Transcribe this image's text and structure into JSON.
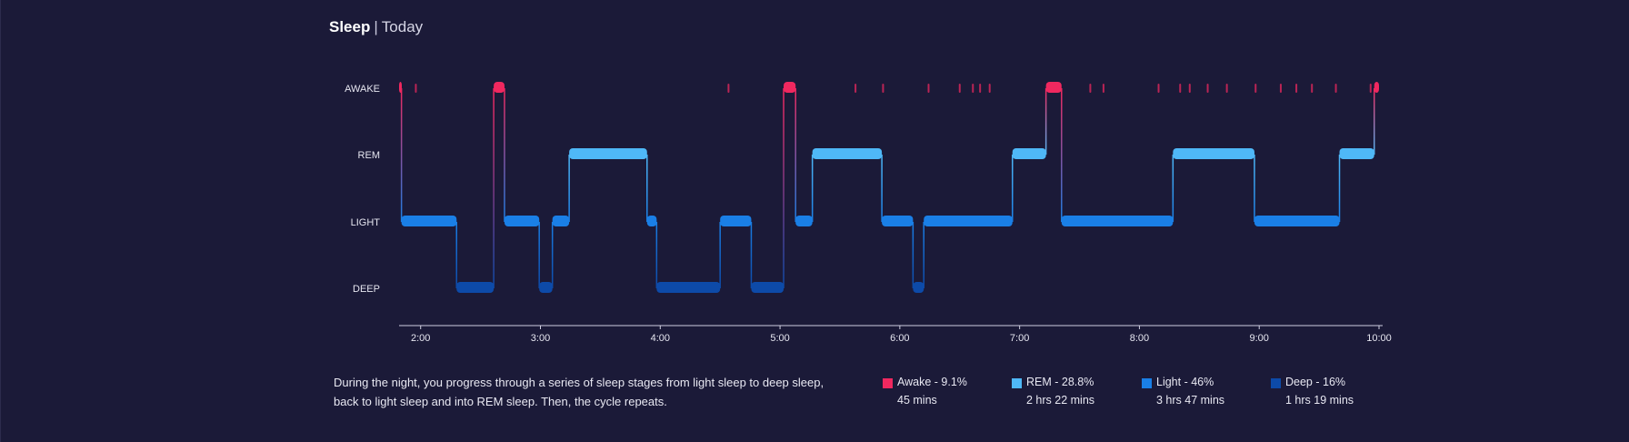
{
  "header": {
    "title": "Sleep",
    "separator": "|",
    "period": "Today"
  },
  "description": "During the night, you progress through a series of sleep stages from light sleep to deep sleep, back to light sleep and into REM sleep. Then, the cycle repeats.",
  "legend": [
    {
      "label": "Awake - 9.1%",
      "duration": "45 mins",
      "color": "#f0285f"
    },
    {
      "label": "REM - 28.8%",
      "duration": "2 hrs 22 mins",
      "color": "#4fb8f7"
    },
    {
      "label": "Light - 46%",
      "duration": "3 hrs 47 mins",
      "color": "#1a7fe6"
    },
    {
      "label": "Deep - 16%",
      "duration": "1 hrs 19 mins",
      "color": "#0d4aa8"
    }
  ],
  "chart_data": {
    "type": "line",
    "title": "",
    "stages": [
      "AWAKE",
      "REM",
      "LIGHT",
      "DEEP"
    ],
    "x_ticks": [
      "2:00",
      "3:00",
      "4:00",
      "5:00",
      "6:00",
      "7:00",
      "8:00",
      "9:00",
      "10:00"
    ],
    "x_range_hours": [
      1.82,
      10.0
    ],
    "stage_colors": {
      "AWAKE": "#f0285f",
      "REM": "#4fb8f7",
      "LIGHT": "#1a7fe6",
      "DEEP": "#0d4aa8"
    },
    "segments": [
      {
        "stage": "AWAKE",
        "start": 1.82,
        "end": 1.84
      },
      {
        "stage": "LIGHT",
        "start": 1.84,
        "end": 2.3
      },
      {
        "stage": "DEEP",
        "start": 2.3,
        "end": 2.61
      },
      {
        "stage": "AWAKE",
        "start": 2.61,
        "end": 2.7
      },
      {
        "stage": "LIGHT",
        "start": 2.7,
        "end": 2.99
      },
      {
        "stage": "DEEP",
        "start": 2.99,
        "end": 3.1
      },
      {
        "stage": "LIGHT",
        "start": 3.1,
        "end": 3.24
      },
      {
        "stage": "REM",
        "start": 3.24,
        "end": 3.89
      },
      {
        "stage": "LIGHT",
        "start": 3.89,
        "end": 3.97
      },
      {
        "stage": "DEEP",
        "start": 3.97,
        "end": 4.5
      },
      {
        "stage": "LIGHT",
        "start": 4.5,
        "end": 4.76
      },
      {
        "stage": "DEEP",
        "start": 4.76,
        "end": 5.03
      },
      {
        "stage": "AWAKE",
        "start": 5.03,
        "end": 5.13
      },
      {
        "stage": "LIGHT",
        "start": 5.13,
        "end": 5.27
      },
      {
        "stage": "REM",
        "start": 5.27,
        "end": 5.85
      },
      {
        "stage": "LIGHT",
        "start": 5.85,
        "end": 6.11
      },
      {
        "stage": "DEEP",
        "start": 6.11,
        "end": 6.2
      },
      {
        "stage": "LIGHT",
        "start": 6.2,
        "end": 6.94
      },
      {
        "stage": "REM",
        "start": 6.94,
        "end": 7.22
      },
      {
        "stage": "AWAKE",
        "start": 7.22,
        "end": 7.35
      },
      {
        "stage": "LIGHT",
        "start": 7.35,
        "end": 8.28
      },
      {
        "stage": "REM",
        "start": 8.28,
        "end": 8.96
      },
      {
        "stage": "LIGHT",
        "start": 8.96,
        "end": 9.67
      },
      {
        "stage": "REM",
        "start": 9.67,
        "end": 9.96
      },
      {
        "stage": "AWAKE",
        "start": 9.96,
        "end": 10.0
      }
    ],
    "brief_awakenings": [
      1.96,
      4.57,
      5.63,
      5.86,
      6.24,
      6.5,
      6.61,
      6.67,
      6.75,
      7.59,
      7.7,
      8.16,
      8.34,
      8.42,
      8.57,
      8.73,
      8.97,
      9.18,
      9.31,
      9.44,
      9.64,
      9.93
    ]
  }
}
